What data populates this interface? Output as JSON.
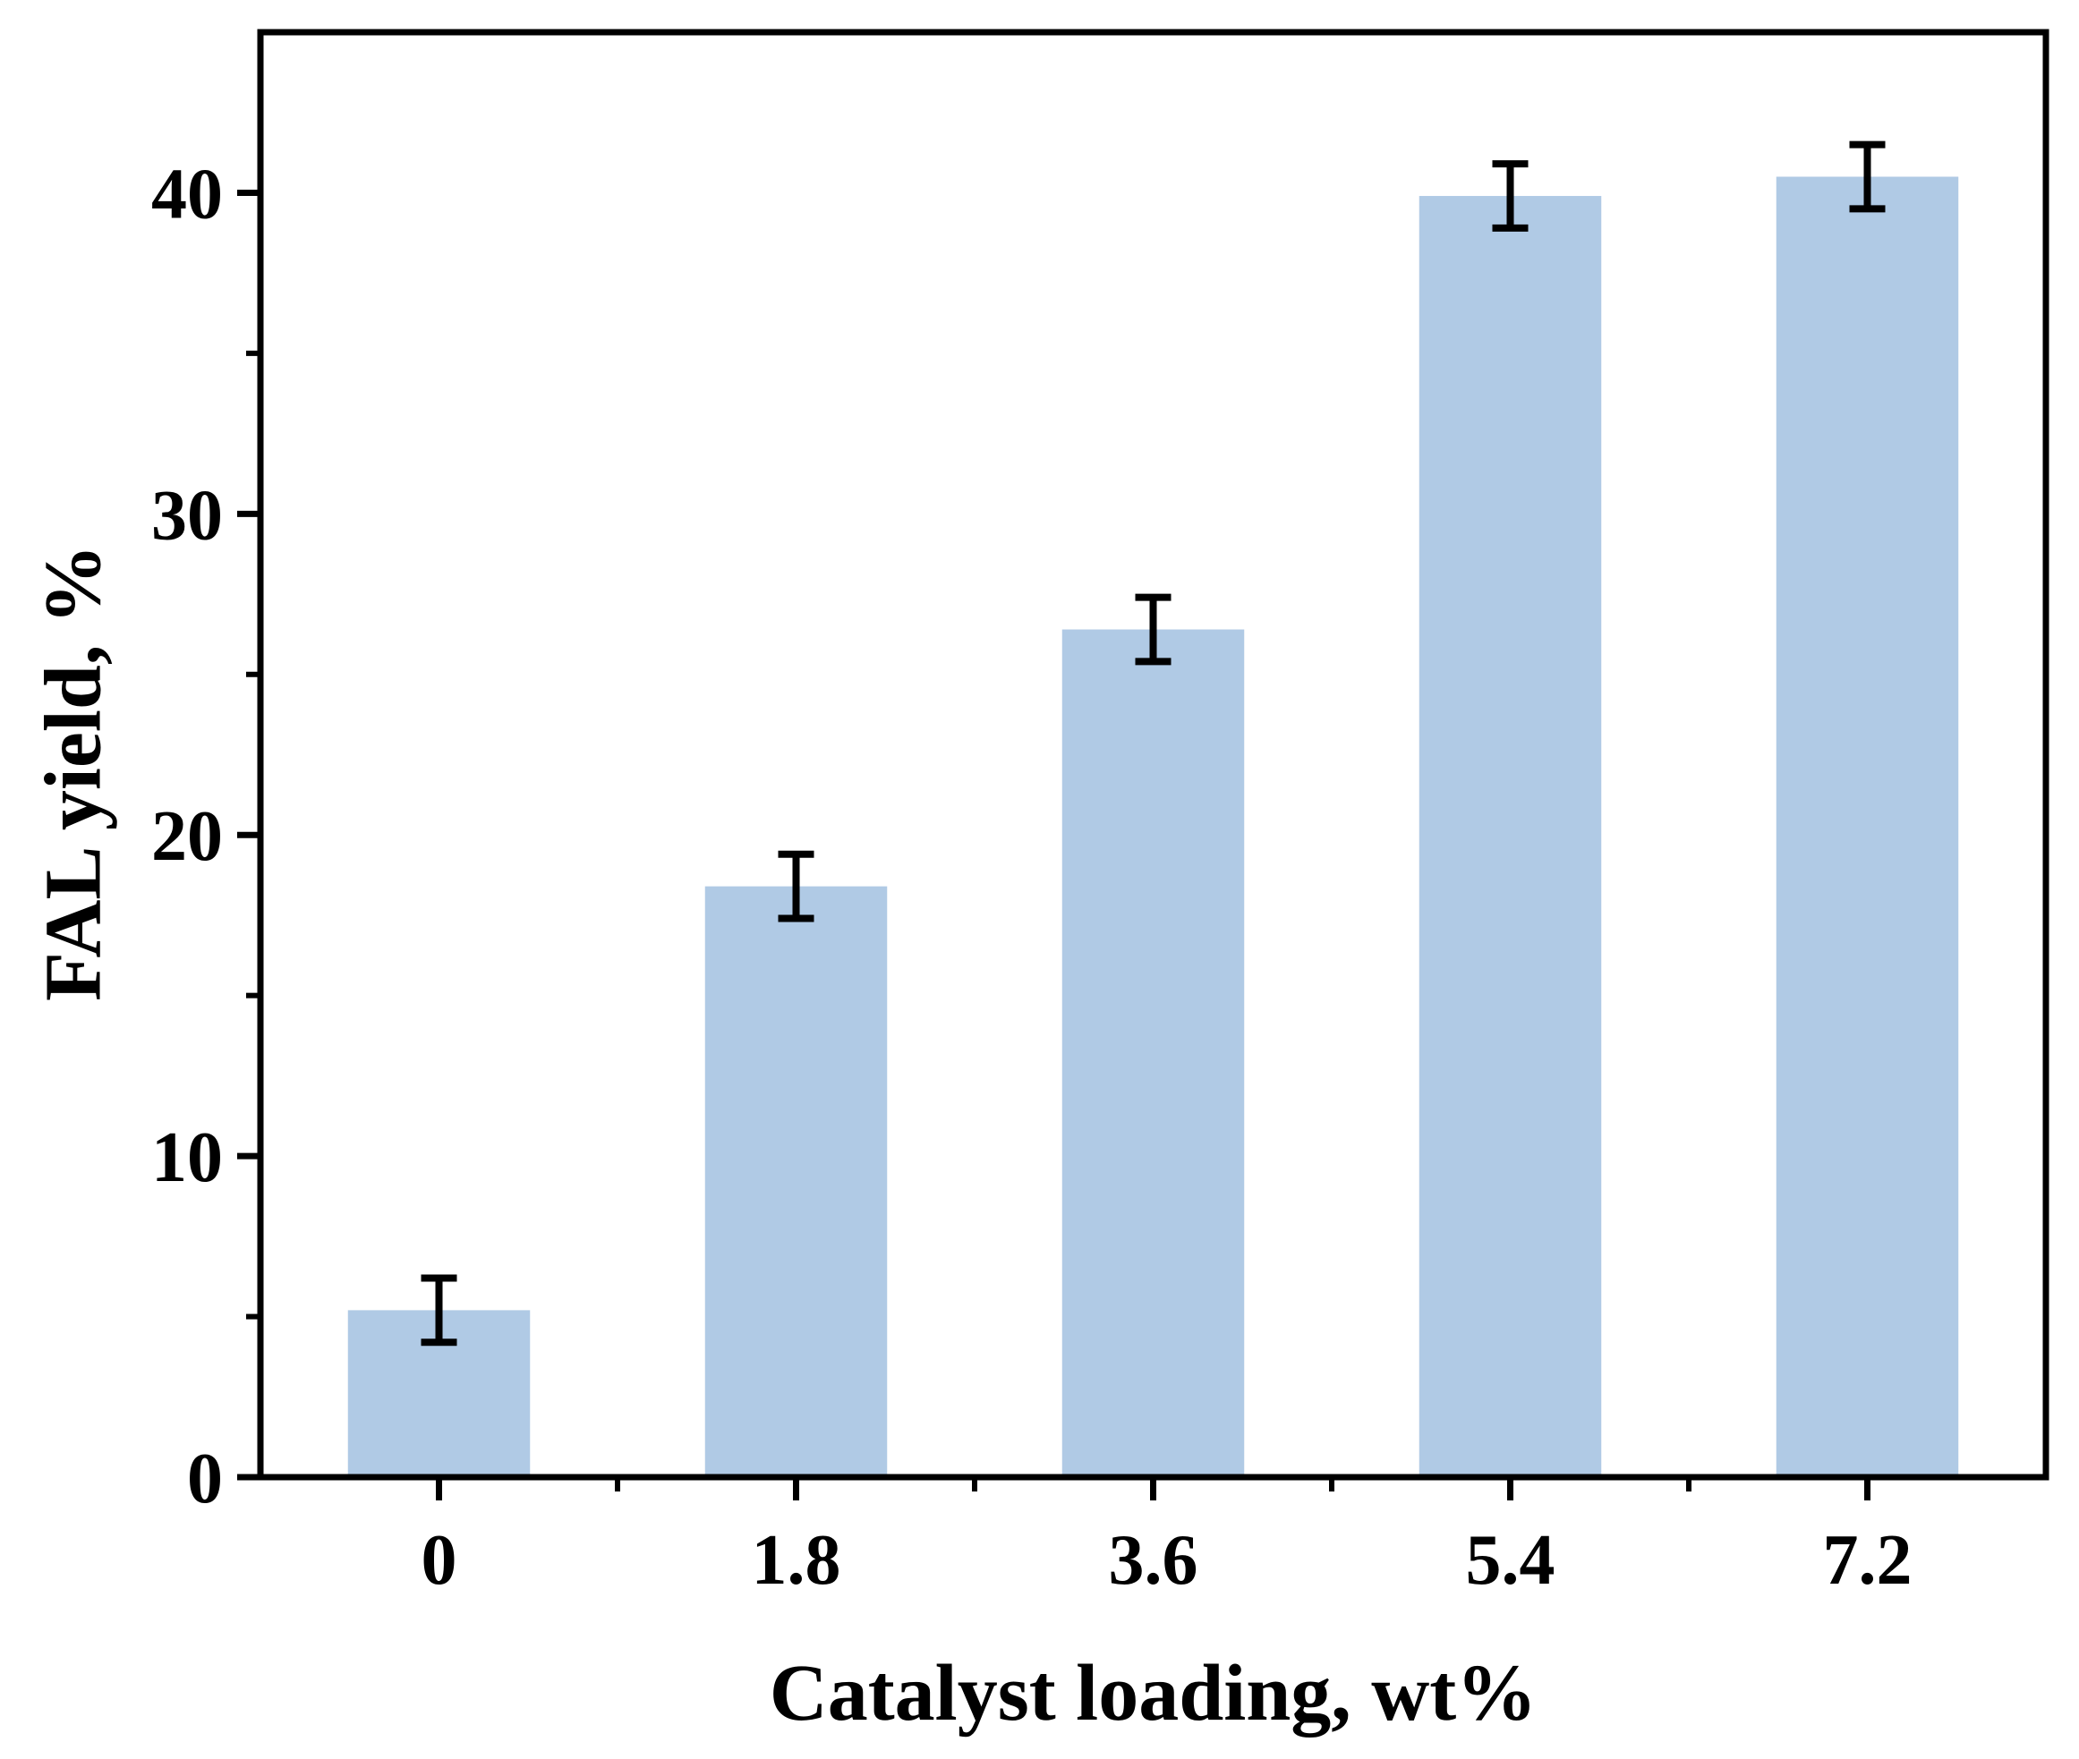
{
  "chart_data": {
    "type": "bar",
    "title": "",
    "xlabel": "Catalyst loading, wt%",
    "ylabel": "FAL yield, %",
    "categories": [
      "0",
      "1.8",
      "3.6",
      "5.4",
      "7.2"
    ],
    "series": [
      {
        "values": [
          5.2,
          18.4,
          26.4,
          39.9,
          40.5
        ],
        "errors": [
          1.0,
          1.0,
          1.0,
          1.0,
          1.0
        ]
      }
    ],
    "ylim": [
      0,
      45
    ],
    "yticks": [
      0,
      10,
      20,
      30,
      40
    ],
    "yticks_minor": [
      5,
      15,
      25,
      35
    ],
    "grid": false,
    "legend": "none",
    "colors": {
      "bar": "#b0cae5",
      "axis": "#000000",
      "errorbar": "#000000"
    }
  }
}
